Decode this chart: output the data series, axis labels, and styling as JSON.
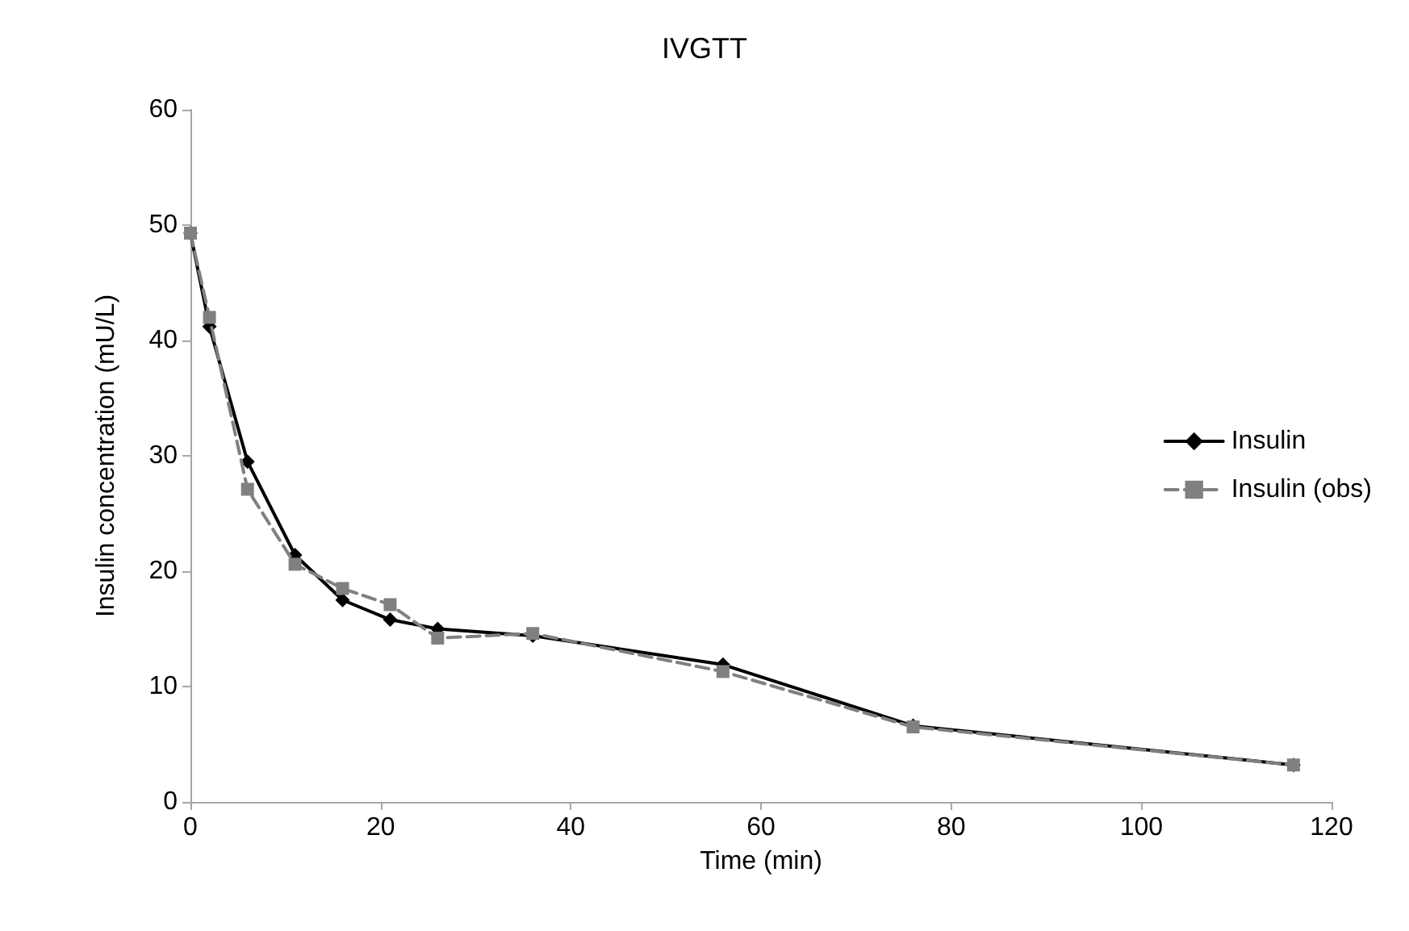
{
  "chart_data": {
    "type": "line",
    "title": "IVGTT",
    "xlabel": "Time (min)",
    "ylabel": "Insulin concentration (mU/L)",
    "x": [
      0,
      2,
      6,
      11,
      16,
      21,
      26,
      36,
      56,
      76,
      116
    ],
    "xlim": [
      0,
      120
    ],
    "xticks": [
      0,
      20,
      40,
      60,
      80,
      100,
      120
    ],
    "ylim": [
      0,
      60
    ],
    "yticks": [
      0,
      10,
      20,
      30,
      40,
      50,
      60
    ],
    "grid": false,
    "legend": "right",
    "series": [
      {
        "name": "Insulin",
        "color": "#000000",
        "marker": "diamond",
        "line_style": "solid",
        "values": [
          49.3,
          41.2,
          29.5,
          21.4,
          17.5,
          15.8,
          15.0,
          14.4,
          11.9,
          6.6,
          3.2
        ]
      },
      {
        "name": "Insulin (obs)",
        "color": "#808080",
        "marker": "square",
        "line_style": "dashed",
        "values": [
          49.3,
          42.0,
          27.1,
          20.6,
          18.5,
          17.1,
          14.2,
          14.6,
          11.3,
          6.5,
          3.2
        ]
      }
    ]
  }
}
